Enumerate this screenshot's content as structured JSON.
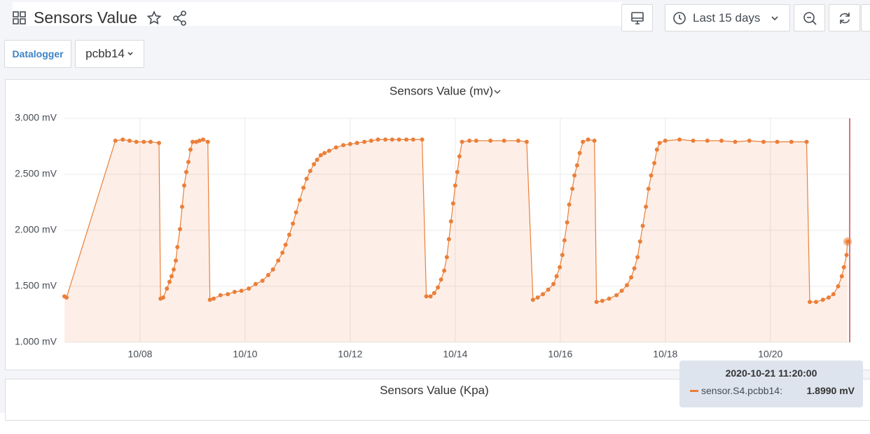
{
  "header": {
    "title": "Sensors Value",
    "time_range": "Last 15 days"
  },
  "variables": {
    "label": "Datalogger",
    "value": "pcbb14"
  },
  "panels": {
    "second_title": "Sensors Value (Kpa)"
  },
  "chart_data": {
    "type": "line",
    "title": "Sensors Value (mv)",
    "xlim": [
      6.56,
      21.51
    ],
    "xticks": [
      {
        "value": 8,
        "label": "10/08"
      },
      {
        "value": 10,
        "label": "10/10"
      },
      {
        "value": 12,
        "label": "10/12"
      },
      {
        "value": 14,
        "label": "10/14"
      },
      {
        "value": 16,
        "label": "10/16"
      },
      {
        "value": 18,
        "label": "10/18"
      },
      {
        "value": 20,
        "label": "10/20"
      }
    ],
    "ylim": [
      1,
      3
    ],
    "yticks": [
      {
        "value": 1,
        "label": "1.000 mV"
      },
      {
        "value": 1.5,
        "label": "1.500 mV"
      },
      {
        "value": 2,
        "label": "2.000 mV"
      },
      {
        "value": 2.5,
        "label": "2.500 mV"
      },
      {
        "value": 3,
        "label": "3.000 mV"
      }
    ],
    "grid": true,
    "series": [
      {
        "name": "sensor.S4.pcbb14",
        "color": "#eb7f39",
        "x": [
          6.56,
          6.6,
          7.53,
          7.67,
          7.8,
          7.93,
          8.07,
          8.2,
          8.36,
          8.39,
          8.44,
          8.51,
          8.56,
          8.6,
          8.64,
          8.68,
          8.71,
          8.76,
          8.8,
          8.84,
          8.88,
          8.92,
          8.96,
          9.0,
          9.07,
          9.13,
          9.2,
          9.29,
          9.33,
          9.4,
          9.53,
          9.67,
          9.8,
          9.93,
          10.07,
          10.2,
          10.33,
          10.44,
          10.53,
          10.63,
          10.71,
          10.77,
          10.84,
          10.91,
          10.97,
          11.04,
          11.11,
          11.17,
          11.24,
          11.31,
          11.37,
          11.44,
          11.51,
          11.6,
          11.73,
          11.87,
          12.0,
          12.13,
          12.27,
          12.4,
          12.53,
          12.67,
          12.8,
          12.93,
          13.07,
          13.2,
          13.37,
          13.45,
          13.53,
          13.6,
          13.67,
          13.73,
          13.79,
          13.84,
          13.88,
          13.92,
          13.96,
          14.0,
          14.04,
          14.08,
          14.13,
          14.27,
          14.4,
          14.67,
          14.93,
          15.2,
          15.36,
          15.48,
          15.57,
          15.67,
          15.77,
          15.87,
          15.93,
          15.99,
          16.04,
          16.08,
          16.13,
          16.17,
          16.23,
          16.27,
          16.32,
          16.37,
          16.43,
          16.53,
          16.65,
          16.69,
          16.8,
          16.93,
          17.07,
          17.17,
          17.27,
          17.35,
          17.41,
          17.47,
          17.52,
          17.57,
          17.63,
          17.68,
          17.73,
          17.79,
          17.84,
          17.89,
          18.0,
          18.27,
          18.53,
          18.8,
          19.07,
          19.33,
          19.6,
          19.87,
          20.13,
          20.4,
          20.69,
          20.75,
          20.87,
          21.0,
          21.11,
          21.2,
          21.29,
          21.36,
          21.4,
          21.45,
          21.47
        ],
        "values": [
          1.41,
          1.4,
          2.8,
          2.81,
          2.8,
          2.79,
          2.79,
          2.79,
          2.78,
          1.39,
          1.4,
          1.48,
          1.54,
          1.59,
          1.65,
          1.73,
          1.85,
          2.01,
          2.21,
          2.4,
          2.52,
          2.61,
          2.72,
          2.79,
          2.79,
          2.8,
          2.81,
          2.79,
          1.38,
          1.39,
          1.42,
          1.43,
          1.45,
          1.46,
          1.48,
          1.52,
          1.55,
          1.6,
          1.65,
          1.73,
          1.8,
          1.87,
          1.96,
          2.06,
          2.16,
          2.27,
          2.38,
          2.46,
          2.53,
          2.59,
          2.63,
          2.67,
          2.69,
          2.71,
          2.74,
          2.76,
          2.77,
          2.78,
          2.79,
          2.8,
          2.81,
          2.81,
          2.81,
          2.81,
          2.81,
          2.81,
          2.81,
          1.41,
          1.41,
          1.44,
          1.49,
          1.56,
          1.64,
          1.76,
          1.92,
          2.08,
          2.24,
          2.4,
          2.52,
          2.66,
          2.79,
          2.8,
          2.8,
          2.8,
          2.8,
          2.8,
          2.79,
          1.38,
          1.4,
          1.43,
          1.47,
          1.52,
          1.59,
          1.67,
          1.78,
          1.91,
          2.07,
          2.23,
          2.37,
          2.49,
          2.58,
          2.69,
          2.79,
          2.81,
          2.8,
          1.36,
          1.37,
          1.39,
          1.42,
          1.46,
          1.51,
          1.58,
          1.66,
          1.76,
          1.9,
          2.04,
          2.21,
          2.37,
          2.49,
          2.6,
          2.72,
          2.78,
          2.8,
          2.81,
          2.8,
          2.8,
          2.8,
          2.79,
          2.8,
          2.79,
          2.79,
          2.79,
          2.79,
          1.36,
          1.36,
          1.38,
          1.4,
          1.43,
          1.5,
          1.59,
          1.67,
          1.78,
          1.899
        ]
      }
    ],
    "tooltip": {
      "time": "2020-10-21 11:20:00",
      "label": "sensor.S4.pcbb14:",
      "value": 1.899,
      "value_label": "1.8990 mV"
    }
  }
}
